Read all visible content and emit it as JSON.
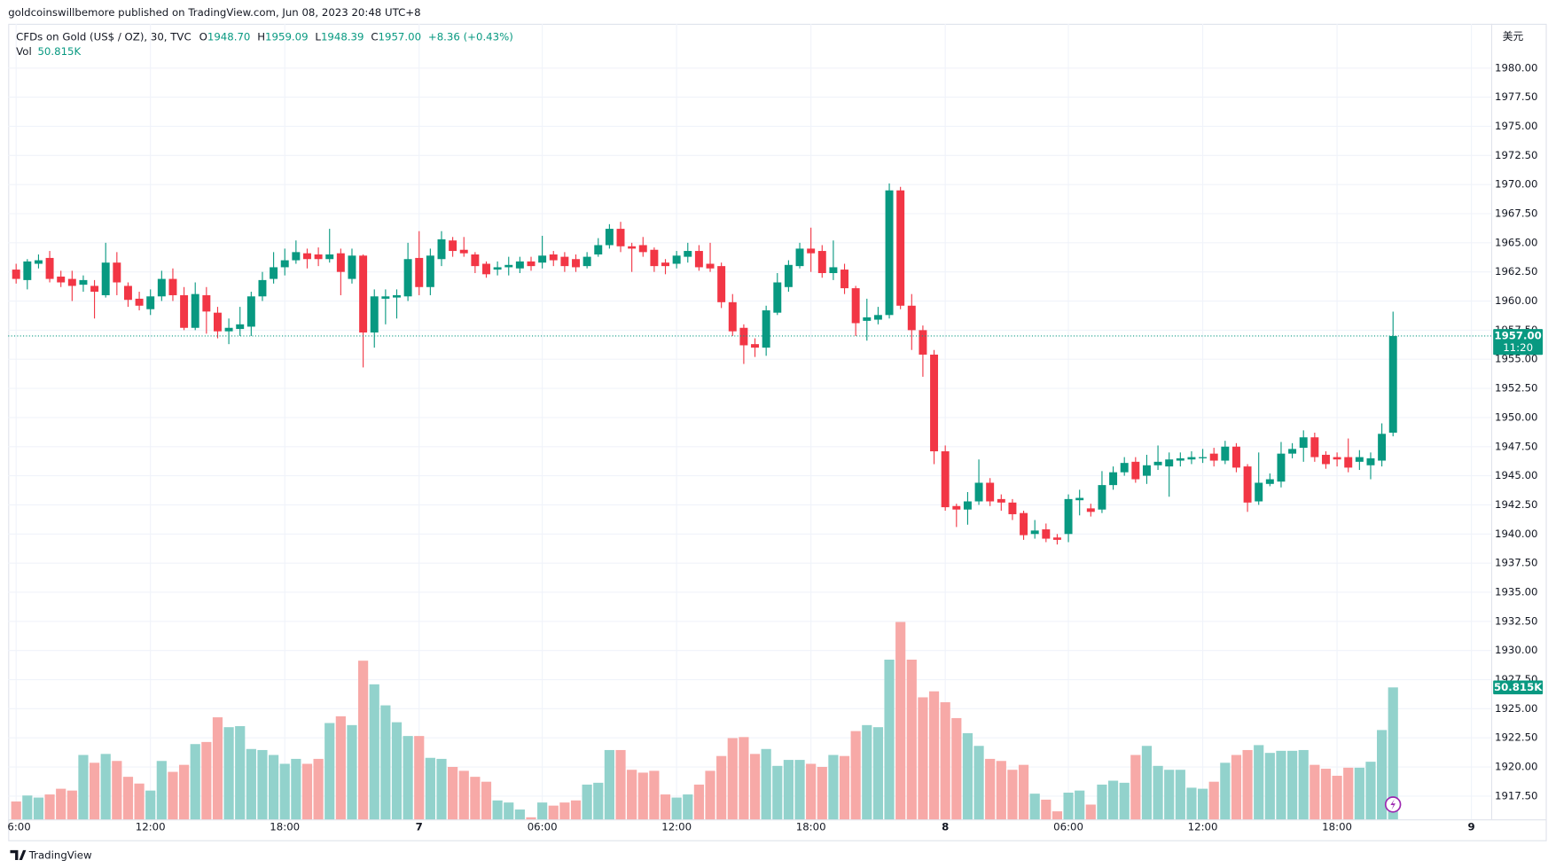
{
  "header": "goldcoinswillbemore published on TradingView.com, Jun 08, 2023 20:48 UTC+8",
  "footer": "TradingView",
  "chart_data": {
    "type": "candlestick",
    "title": "CFDs on Gold (US$ / OZ), 30, TVC",
    "legend": [
      {
        "key": "O",
        "value": "1948.70"
      },
      {
        "key": "H",
        "value": "1959.09"
      },
      {
        "key": "L",
        "value": "1948.39"
      },
      {
        "key": "C",
        "value": "1957.00"
      }
    ],
    "change": "+8.36 (+0.43%)",
    "volume_name": "Vol",
    "volume_label": "50.815K",
    "last_price_label": "1957.00",
    "countdown": "11:20",
    "currency": "美元",
    "colors": {
      "up": "#089981",
      "down": "#f23645",
      "volume_up": "#92d2cc",
      "volume_down": "#f7a9a7"
    },
    "grid": true,
    "ylim": [
      1915.5,
      1983.8
    ],
    "yticks": [
      {
        "value": 1917.5,
        "label": "1917.50"
      },
      {
        "value": 1920,
        "label": "1920.00"
      },
      {
        "value": 1922.5,
        "label": "1922.50"
      },
      {
        "value": 1925,
        "label": "1925.00"
      },
      {
        "value": 1927.5,
        "label": "1927.50"
      },
      {
        "value": 1930,
        "label": "1930.00"
      },
      {
        "value": 1932.5,
        "label": "1932.50"
      },
      {
        "value": 1935,
        "label": "1935.00"
      },
      {
        "value": 1937.5,
        "label": "1937.50"
      },
      {
        "value": 1940,
        "label": "1940.00"
      },
      {
        "value": 1942.5,
        "label": "1942.50"
      },
      {
        "value": 1945,
        "label": "1945.00"
      },
      {
        "value": 1947.5,
        "label": "1947.50"
      },
      {
        "value": 1950,
        "label": "1950.00"
      },
      {
        "value": 1952.5,
        "label": "1952.50"
      },
      {
        "value": 1955,
        "label": "1955.00"
      },
      {
        "value": 1957.5,
        "label": "1957.50"
      },
      {
        "value": 1960,
        "label": "1960.00"
      },
      {
        "value": 1962.5,
        "label": "1962.50"
      },
      {
        "value": 1965,
        "label": "1965.00"
      },
      {
        "value": 1967.5,
        "label": "1967.50"
      },
      {
        "value": 1970,
        "label": "1970.00"
      },
      {
        "value": 1972.5,
        "label": "1972.50"
      },
      {
        "value": 1975,
        "label": "1975.00"
      },
      {
        "value": 1977.5,
        "label": "1977.50"
      },
      {
        "value": 1980,
        "label": "1980.00"
      }
    ],
    "categories": [
      "6:00",
      null,
      null,
      null,
      null,
      null,
      null,
      null,
      null,
      null,
      null,
      null,
      "12:00",
      null,
      null,
      null,
      null,
      null,
      null,
      null,
      null,
      null,
      null,
      null,
      "18:00",
      null,
      null,
      null,
      null,
      null,
      null,
      null,
      null,
      null,
      null,
      null,
      "7",
      null,
      null,
      null,
      null,
      null,
      null,
      null,
      null,
      null,
      null,
      "06:00",
      null,
      null,
      null,
      null,
      null,
      null,
      null,
      null,
      null,
      null,
      null,
      "12:00",
      null,
      null,
      null,
      null,
      null,
      null,
      null,
      null,
      null,
      null,
      null,
      "18:00",
      null,
      null,
      null,
      null,
      null,
      null,
      null,
      null,
      null,
      null,
      null,
      "8",
      null,
      null,
      null,
      null,
      null,
      null,
      null,
      null,
      null,
      null,
      "06:00",
      null,
      null,
      null,
      null,
      null,
      null,
      null,
      null,
      null,
      null,
      null,
      "12:00",
      null,
      null,
      null,
      null,
      null,
      null,
      null,
      null,
      null,
      null,
      null,
      "18:00",
      null,
      null,
      null,
      null,
      null,
      null,
      null,
      null,
      null,
      null,
      null,
      "9"
    ],
    "open": [
      1962.7,
      1961.8,
      1963.2,
      1963.7,
      1962.1,
      1961.9,
      1961.4,
      1961.3,
      1960.5,
      1963.3,
      1961.3,
      1960.2,
      1959.3,
      1960.4,
      1961.9,
      1960.5,
      1957.7,
      1960.5,
      1959.0,
      1957.4,
      1957.6,
      1957.8,
      1960.4,
      1961.9,
      1962.9,
      1963.5,
      1964.1,
      1964.0,
      1963.6,
      1964.1,
      1961.9,
      1963.9,
      1957.3,
      1960.2,
      1960.3,
      1960.4,
      1963.7,
      1961.2,
      1963.6,
      1965.2,
      1964.4,
      1964.0,
      1963.2,
      1962.7,
      1962.9,
      1962.8,
      1963.4,
      1963.3,
      1964.0,
      1963.8,
      1963.6,
      1963.0,
      1964.0,
      1964.8,
      1966.2,
      1964.7,
      1964.8,
      1964.4,
      1963.3,
      1963.2,
      1963.8,
      1964.3,
      1963.2,
      1963.0,
      1959.9,
      1957.7,
      1956.3,
      1956.0,
      1959.0,
      1961.2,
      1963.0,
      1964.5,
      1964.3,
      1962.4,
      1962.7,
      1961.1,
      1958.3,
      1958.4,
      1958.8,
      1969.5,
      1959.6,
      1957.5,
      1955.4,
      1947.1,
      1942.4,
      1942.1,
      1942.8,
      1944.4,
      1943.0,
      1942.7,
      1941.8,
      1940.0,
      1940.4,
      1939.7,
      1940.0,
      1942.9,
      1942.2,
      1942.1,
      1944.2,
      1945.3,
      1946.2,
      1945.0,
      1945.9,
      1945.8,
      1946.3,
      1946.4,
      1946.5,
      1946.9,
      1946.3,
      1947.5,
      1945.8,
      1942.8,
      1944.3,
      1944.5,
      1946.9,
      1947.4,
      1948.3,
      1946.8,
      1946.6,
      1946.6,
      1946.2,
      1945.9,
      1946.3,
      1948.7,
      null,
      null,
      null,
      null,
      null,
      null,
      null
    ],
    "high": [
      1963.2,
      1963.6,
      1964.0,
      1964.3,
      1962.6,
      1962.6,
      1962.2,
      1961.8,
      1965.0,
      1964.2,
      1961.6,
      1960.8,
      1961.0,
      1962.6,
      1962.8,
      1961.2,
      1961.6,
      1961.2,
      1959.5,
      1958.5,
      1959.5,
      1960.8,
      1962.5,
      1964.2,
      1964.5,
      1965.2,
      1964.5,
      1964.6,
      1966.2,
      1964.5,
      1964.5,
      1964.0,
      1961.0,
      1961.0,
      1961.0,
      1965.0,
      1966.0,
      1964.5,
      1966.0,
      1965.5,
      1965.5,
      1964.2,
      1963.4,
      1963.4,
      1963.8,
      1963.8,
      1963.8,
      1965.6,
      1964.3,
      1964.2,
      1964.0,
      1964.2,
      1965.4,
      1966.6,
      1966.8,
      1965.0,
      1965.5,
      1964.6,
      1963.6,
      1964.3,
      1965.0,
      1964.8,
      1965.0,
      1963.3,
      1960.6,
      1958.0,
      1956.8,
      1959.6,
      1962.4,
      1963.5,
      1965.0,
      1966.3,
      1964.8,
      1965.2,
      1963.2,
      1961.3,
      1960.2,
      1959.5,
      1970.1,
      1969.8,
      1960.6,
      1957.9,
      1955.8,
      1947.6,
      1942.6,
      1943.6,
      1946.4,
      1944.8,
      1943.4,
      1943.0,
      1942.0,
      1941.2,
      1940.9,
      1940.0,
      1943.4,
      1943.8,
      1942.6,
      1945.4,
      1945.8,
      1946.6,
      1946.6,
      1946.8,
      1947.6,
      1947.0,
      1947.0,
      1947.1,
      1947.3,
      1947.4,
      1948.0,
      1947.8,
      1946.0,
      1947.0,
      1945.2,
      1947.9,
      1947.8,
      1948.9,
      1948.7,
      1947.1,
      1947.0,
      1948.2,
      1947.2,
      1947.0,
      1949.5,
      1959.09,
      null,
      null,
      null,
      null,
      null,
      null,
      null
    ],
    "low": [
      1961.5,
      1961.0,
      1962.8,
      1961.6,
      1961.2,
      1960.0,
      1960.8,
      1958.5,
      1960.3,
      1960.5,
      1959.5,
      1959.2,
      1958.8,
      1960.0,
      1960.0,
      1957.5,
      1957.5,
      1957.2,
      1956.8,
      1956.3,
      1957.0,
      1957.0,
      1960.0,
      1961.5,
      1962.2,
      1963.2,
      1962.8,
      1963.0,
      1963.3,
      1960.5,
      1961.5,
      1954.3,
      1956.0,
      1958.0,
      1958.5,
      1960.0,
      1960.5,
      1960.5,
      1963.0,
      1963.8,
      1963.8,
      1962.4,
      1962.0,
      1962.2,
      1962.2,
      1962.4,
      1962.6,
      1962.8,
      1963.0,
      1962.5,
      1962.5,
      1962.8,
      1963.8,
      1964.5,
      1964.2,
      1962.5,
      1963.8,
      1962.5,
      1962.3,
      1962.8,
      1963.3,
      1962.6,
      1962.5,
      1959.4,
      1957.0,
      1954.6,
      1955.2,
      1955.3,
      1958.8,
      1960.8,
      1962.8,
      1962.5,
      1962.0,
      1961.8,
      1960.6,
      1957.0,
      1956.6,
      1958.0,
      1958.5,
      1959.3,
      1955.8,
      1953.5,
      1946.0,
      1942.0,
      1940.6,
      1940.8,
      1942.5,
      1942.4,
      1942.0,
      1941.2,
      1939.5,
      1939.6,
      1939.3,
      1939.1,
      1939.3,
      1941.6,
      1941.5,
      1941.8,
      1943.8,
      1945.0,
      1944.4,
      1944.3,
      1945.5,
      1943.2,
      1945.8,
      1946.0,
      1946.1,
      1945.8,
      1946.0,
      1945.3,
      1941.9,
      1942.5,
      1944.1,
      1944.0,
      1946.5,
      1946.2,
      1946.2,
      1945.6,
      1945.8,
      1945.3,
      1945.5,
      1944.7,
      1945.8,
      1948.39,
      null,
      null,
      null,
      null,
      null,
      null,
      null
    ],
    "close": [
      1961.9,
      1963.4,
      1963.5,
      1961.9,
      1961.6,
      1961.3,
      1961.8,
      1960.8,
      1963.3,
      1961.6,
      1960.1,
      1959.6,
      1960.4,
      1961.9,
      1960.5,
      1957.7,
      1960.6,
      1959.1,
      1957.4,
      1957.7,
      1958.0,
      1960.4,
      1961.8,
      1962.9,
      1963.5,
      1964.2,
      1963.6,
      1963.6,
      1964.0,
      1962.5,
      1963.9,
      1957.3,
      1960.4,
      1960.4,
      1960.5,
      1963.6,
      1961.2,
      1963.9,
      1965.3,
      1964.3,
      1964.1,
      1963.0,
      1962.3,
      1962.9,
      1963.1,
      1963.4,
      1963.0,
      1963.9,
      1963.5,
      1963.0,
      1962.9,
      1963.8,
      1964.8,
      1966.2,
      1964.7,
      1964.5,
      1964.2,
      1963.0,
      1963.0,
      1963.9,
      1964.3,
      1962.9,
      1962.8,
      1959.9,
      1957.4,
      1956.2,
      1956.0,
      1959.2,
      1961.6,
      1963.1,
      1964.5,
      1964.1,
      1962.4,
      1962.9,
      1961.1,
      1958.1,
      1958.6,
      1958.8,
      1969.5,
      1959.6,
      1957.5,
      1955.4,
      1947.1,
      1942.3,
      1942.1,
      1942.8,
      1944.4,
      1942.8,
      1942.7,
      1941.7,
      1939.9,
      1940.3,
      1939.6,
      1939.5,
      1943.0,
      1943.1,
      1941.9,
      1944.2,
      1945.3,
      1946.1,
      1944.7,
      1945.9,
      1946.2,
      1946.4,
      1946.5,
      1946.6,
      1946.6,
      1946.3,
      1947.5,
      1945.7,
      1942.7,
      1944.4,
      1944.7,
      1946.9,
      1947.3,
      1948.3,
      1946.6,
      1946.0,
      1946.4,
      1945.7,
      1946.6,
      1946.5,
      1948.6,
      1957.0,
      null,
      null,
      null,
      null,
      null,
      null,
      null
    ],
    "volume": [
      6900,
      9200,
      8400,
      9600,
      11800,
      11100,
      24800,
      21800,
      25200,
      22500,
      16400,
      13800,
      11100,
      22500,
      18300,
      21000,
      29000,
      29800,
      39300,
      35500,
      35900,
      27100,
      26700,
      24800,
      21400,
      23300,
      21400,
      23300,
      37100,
      39700,
      36300,
      61100,
      52000,
      43900,
      37400,
      32100,
      32100,
      23700,
      23300,
      20200,
      18700,
      16400,
      14500,
      7300,
      6500,
      3800,
      800,
      6500,
      5300,
      6500,
      7300,
      13400,
      14100,
      26700,
      26700,
      19100,
      18000,
      18700,
      9600,
      8400,
      9600,
      13400,
      18700,
      24400,
      31300,
      31700,
      25200,
      27100,
      20600,
      22900,
      22900,
      21400,
      20200,
      24800,
      24400,
      34000,
      36300,
      35500,
      61500,
      76000,
      61500,
      47000,
      49300,
      45100,
      39000,
      33200,
      28300,
      23300,
      22500,
      19100,
      21000,
      9900,
      7600,
      3100,
      10300,
      11100,
      5700,
      13400,
      14900,
      14100,
      24800,
      28300,
      20600,
      19100,
      19100,
      12200,
      11800,
      14500,
      21800,
      24800,
      26700,
      28600,
      25600,
      26400,
      26400,
      26700,
      21000,
      19500,
      16800,
      19900,
      19900,
      22200,
      34400,
      50815,
      null,
      null,
      null,
      null,
      null,
      null,
      null
    ]
  }
}
